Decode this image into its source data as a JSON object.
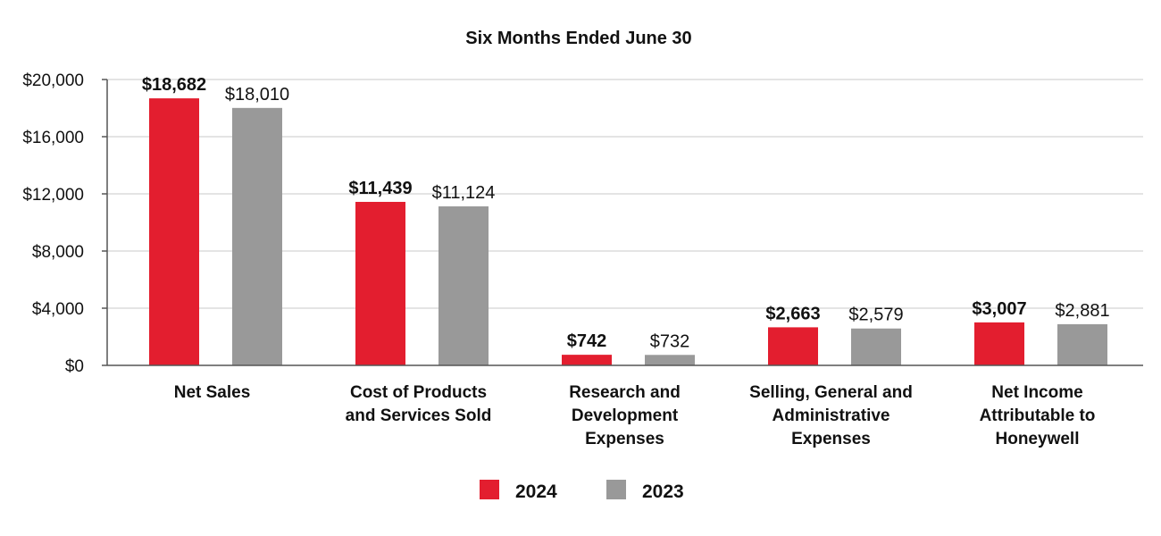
{
  "chart_data": {
    "type": "bar",
    "title": "Six Months Ended June 30",
    "xlabel": "",
    "ylabel": "",
    "ylim": [
      0,
      20000
    ],
    "yticks": [
      0,
      4000,
      8000,
      12000,
      16000,
      20000
    ],
    "ytick_labels": [
      "$0",
      "$4,000",
      "$8,000",
      "$12,000",
      "$16,000",
      "$20,000"
    ],
    "grid": true,
    "legend_position": "bottom-center",
    "categories": [
      [
        "Net Sales"
      ],
      [
        "Cost of Products",
        "and Services Sold"
      ],
      [
        "Research and",
        "Development",
        "Expenses"
      ],
      [
        "Selling, General and",
        "Administrative",
        "Expenses"
      ],
      [
        "Net Income",
        "Attributable to",
        "Honeywell"
      ]
    ],
    "series": [
      {
        "name": "2024",
        "color": "#e31e2f",
        "bold_labels": true,
        "values": [
          18682,
          11439,
          742,
          2663,
          3007
        ],
        "labels": [
          "$18,682",
          "$11,439",
          "$742",
          "$2,663",
          "$3,007"
        ]
      },
      {
        "name": "2023",
        "color": "#999999",
        "bold_labels": false,
        "values": [
          18010,
          11124,
          732,
          2579,
          2881
        ],
        "labels": [
          "$18,010",
          "$11,124",
          "$732",
          "$2,579",
          "$2,881"
        ]
      }
    ]
  }
}
